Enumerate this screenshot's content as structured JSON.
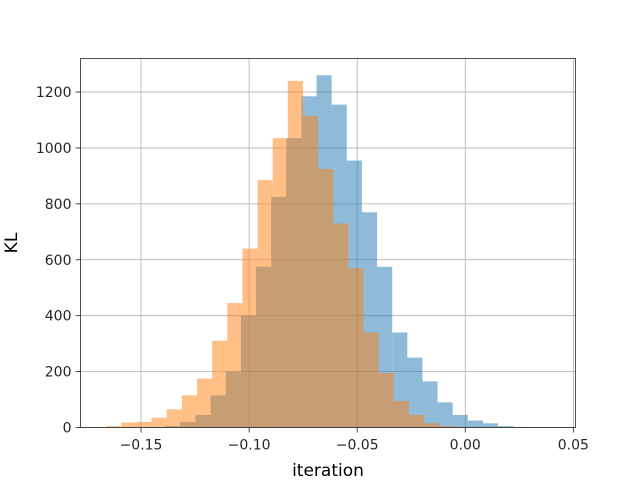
{
  "chart_data": {
    "type": "bar",
    "xlabel": "iteration",
    "ylabel": "KL",
    "xlim": [
      -0.178,
      0.051
    ],
    "ylim": [
      0,
      1320
    ],
    "grid": true,
    "x_ticks": [
      {
        "value": -0.15,
        "label": "−0.15"
      },
      {
        "value": -0.1,
        "label": "−0.10"
      },
      {
        "value": -0.05,
        "label": "−0.05"
      },
      {
        "value": 0.0,
        "label": "0.00"
      },
      {
        "value": 0.05,
        "label": "0.05"
      }
    ],
    "y_ticks": [
      {
        "value": 0,
        "label": "0"
      },
      {
        "value": 200,
        "label": "200"
      },
      {
        "value": 400,
        "label": "400"
      },
      {
        "value": 600,
        "label": "600"
      },
      {
        "value": 800,
        "label": "800"
      },
      {
        "value": 1000,
        "label": "1000"
      },
      {
        "value": 1200,
        "label": "1200"
      }
    ],
    "series": [
      {
        "color": "#1f77b4",
        "opacity": 0.5,
        "bins": {
          "start": -0.1388,
          "width": 0.007,
          "counts": [
            5,
            20,
            45,
            115,
            200,
            400,
            575,
            825,
            1035,
            1185,
            1260,
            1155,
            955,
            770,
            575,
            340,
            250,
            165,
            90,
            45,
            25,
            15,
            5,
            2,
            0,
            0,
            0,
            0
          ]
        }
      },
      {
        "color": "#ff7f0e",
        "opacity": 0.5,
        "bins": {
          "start": -0.1661,
          "width": 0.007,
          "counts": [
            5,
            18,
            20,
            35,
            65,
            115,
            175,
            310,
            445,
            640,
            885,
            1035,
            1240,
            1115,
            925,
            730,
            570,
            340,
            195,
            95,
            45,
            15,
            5,
            2
          ]
        }
      }
    ]
  }
}
